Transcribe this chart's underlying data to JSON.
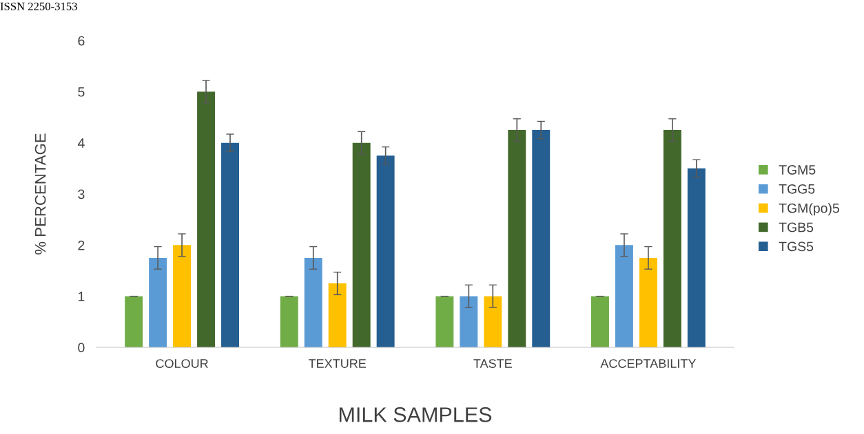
{
  "chart_data": {
    "type": "bar",
    "ylabel": "% PERCENTAGE",
    "xlabel": "MILK SAMPLES",
    "annotations": [
      "ISSN 2250-3153"
    ],
    "categories": [
      "COLOUR",
      "TEXTURE",
      "TASTE",
      "ACCEPTABILITY"
    ],
    "series": [
      {
        "name": "TGM5",
        "color": "#70ad47",
        "values": [
          1,
          1,
          1,
          1
        ],
        "errors": [
          0,
          0,
          0,
          0
        ]
      },
      {
        "name": "TGG5",
        "color": "#5b9bd5",
        "values": [
          1.75,
          1.75,
          1,
          2
        ],
        "errors": [
          0.22,
          0.22,
          0.22,
          0.22
        ]
      },
      {
        "name": "TGM(po)5",
        "color": "#ffc000",
        "values": [
          2,
          1.25,
          1,
          1.75
        ],
        "errors": [
          0.22,
          0.22,
          0.22,
          0.22
        ]
      },
      {
        "name": "TGB5",
        "color": "#43682b",
        "values": [
          5,
          4,
          4.25,
          4.25
        ],
        "errors": [
          0.22,
          0.22,
          0.22,
          0.22
        ]
      },
      {
        "name": "TGS5",
        "color": "#255e91",
        "values": [
          4,
          3.75,
          4.25,
          3.5
        ],
        "errors": [
          0.17,
          0.17,
          0.17,
          0.17
        ]
      }
    ],
    "ylim": [
      0,
      6
    ],
    "yticks": [
      0,
      1,
      2,
      3,
      4,
      5,
      6
    ],
    "grid": false,
    "legend": "right"
  }
}
